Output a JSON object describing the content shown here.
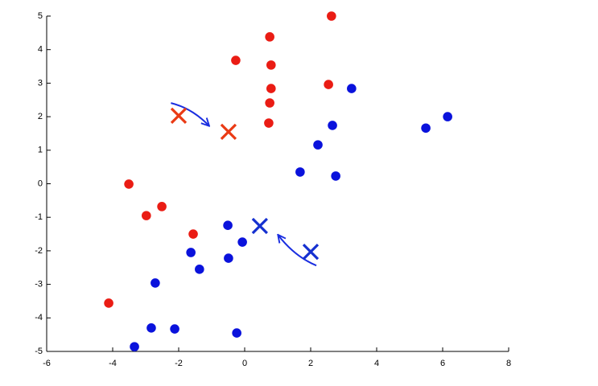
{
  "chart_data": {
    "type": "scatter",
    "xlim": [
      -6,
      8
    ],
    "xticks": [
      -6,
      -4,
      -2,
      0,
      2,
      4,
      6,
      8
    ],
    "ylim": [
      -5,
      5
    ],
    "yticks": [
      -5,
      -4,
      -3,
      -2,
      -1,
      0,
      1,
      2,
      3,
      4,
      5
    ],
    "grid": false,
    "series": [
      {
        "color": "#ea1c14",
        "marker": "dot",
        "x": [
          2.63,
          0.76,
          -0.27,
          0.8,
          0.8,
          2.54,
          0.76,
          0.73,
          -3.51,
          -2.51,
          -2.98,
          -1.56,
          -4.12
        ],
        "values": [
          5.0,
          4.38,
          3.68,
          3.54,
          2.84,
          2.96,
          2.41,
          1.81,
          -0.01,
          -0.68,
          -0.95,
          -1.5,
          -3.56
        ]
      },
      {
        "color": "#0a12dc",
        "marker": "dot",
        "x": [
          3.24,
          6.15,
          5.49,
          2.66,
          2.22,
          1.68,
          2.76,
          -0.51,
          -0.07,
          -1.63,
          -0.49,
          -1.37,
          -2.71,
          -2.83,
          -2.12,
          -0.24,
          -3.34
        ],
        "values": [
          2.84,
          2.0,
          1.66,
          1.74,
          1.16,
          0.35,
          0.23,
          -1.24,
          -1.74,
          -2.05,
          -2.22,
          -2.55,
          -2.96,
          -4.3,
          -4.33,
          -4.45,
          -4.86
        ]
      },
      {
        "color": "#ea3a14",
        "marker": "cross",
        "arrow": true,
        "arrow_color": "#1a2ee0",
        "x": [
          -2.0,
          -0.49
        ],
        "values": [
          2.03,
          1.55
        ]
      },
      {
        "color": "#1530d0",
        "marker": "cross",
        "arrow": true,
        "arrow_color": "#1a2ee0",
        "x": [
          2.0,
          0.46
        ],
        "values": [
          -2.03,
          -1.26
        ]
      }
    ]
  }
}
